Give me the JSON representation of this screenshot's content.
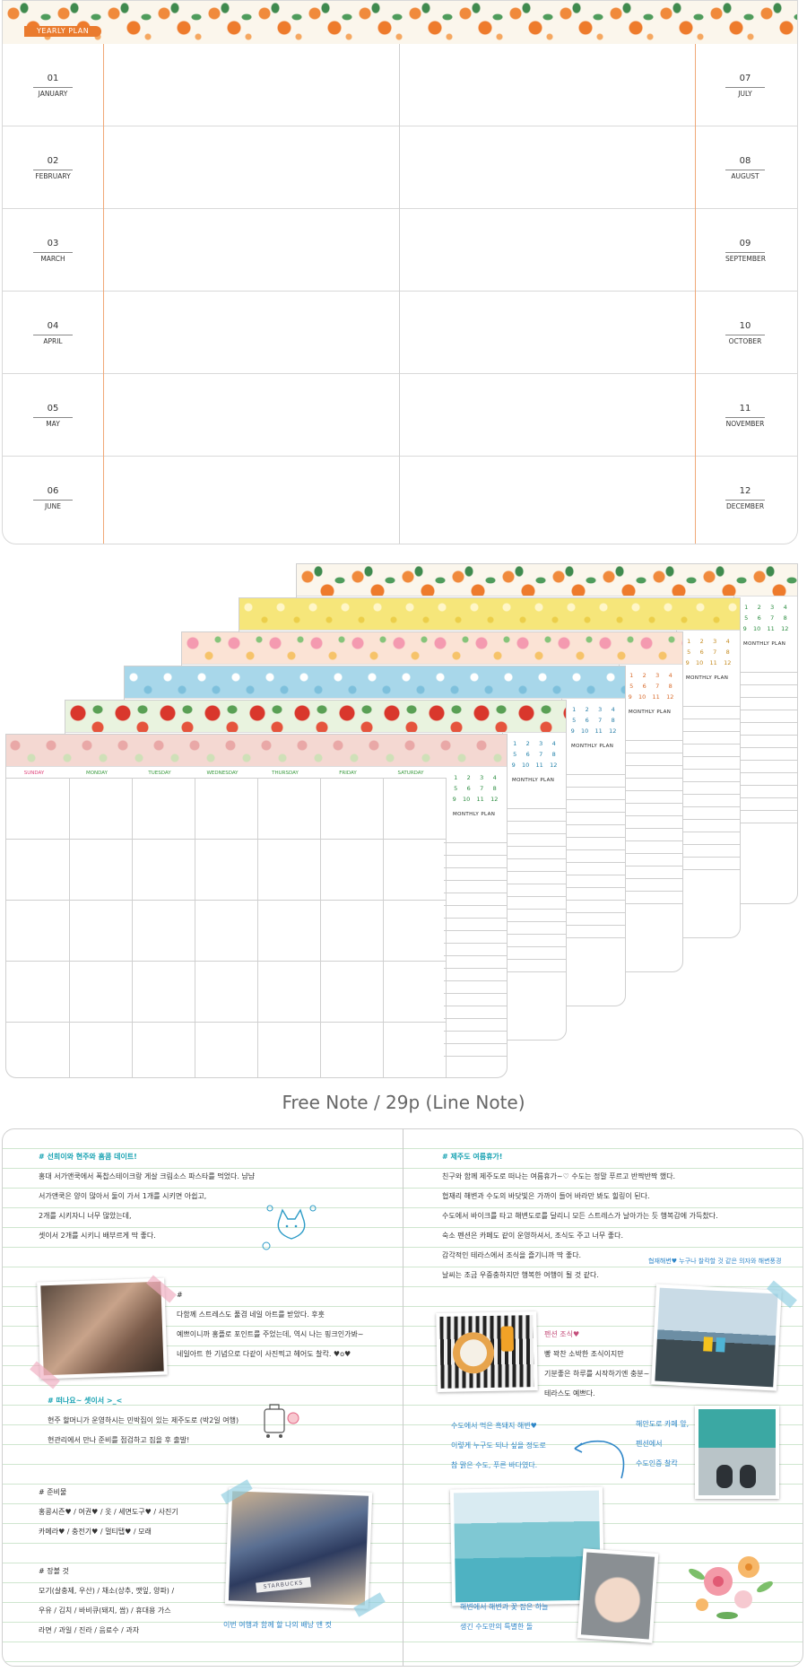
{
  "yearly_plan": {
    "label": "YEARLY PLAN",
    "months_left": [
      {
        "num": "01",
        "name": "JANUARY"
      },
      {
        "num": "02",
        "name": "FEBRUARY"
      },
      {
        "num": "03",
        "name": "MARCH"
      },
      {
        "num": "04",
        "name": "APRIL"
      },
      {
        "num": "05",
        "name": "MAY"
      },
      {
        "num": "06",
        "name": "JUNE"
      }
    ],
    "months_right": [
      {
        "num": "07",
        "name": "JULY"
      },
      {
        "num": "08",
        "name": "AUGUST"
      },
      {
        "num": "09",
        "name": "SEPTEMBER"
      },
      {
        "num": "10",
        "name": "OCTOBER"
      },
      {
        "num": "11",
        "name": "NOVEMBER"
      },
      {
        "num": "12",
        "name": "DECEMBER"
      }
    ]
  },
  "monthly_plan": {
    "days": [
      "SUNDAY",
      "MONDAY",
      "TUESDAY",
      "WEDNESDAY",
      "THURSDAY",
      "FRIDAY",
      "SATURDAY"
    ],
    "mini_calendar": [
      [
        "1",
        "2",
        "3",
        "4"
      ],
      [
        "5",
        "6",
        "7",
        "8"
      ],
      [
        "9",
        "10",
        "11",
        "12"
      ]
    ],
    "label": "MONTHLY PLAN",
    "colors": {
      "sunday": "#e0457b",
      "weekday": "#3a9a3e",
      "accent": "#ea7b2e"
    }
  },
  "free_note": {
    "caption": "Free Note / 29p (Line Note)",
    "left_page": {
      "heading1": "# 선희이와 현주와 홈콤 데이트!",
      "lines1": [
        "홍대 서가앤쿡에서 폭찹스테이크랑 게살 크림소스 파스타를 먹었다. 냠냠",
        "서가앤쿡은 양이 많아서 둘이 가서 1개를 시키면 아쉽고,",
        "2개를 시키자니 너무 많았는데,",
        "셋이서 2개를 시키니 배부르게 딱 좋다."
      ],
      "note_mark": "#",
      "lines2": [
        "다함께 스트레스도 풀겸 네일 아트를 받았다. 후훗",
        "예쁘이니까 홍플로 포인트를 주었는데, 역시 나는 핑크인가봐~",
        "네일아트 한 기념으로 다같이 사진찍고 헤어도 찰칵. ♥o♥"
      ],
      "heading2": "# 떠나요~ 셋이서 >_<",
      "lines3": [
        "현주 할머니가 운영하시는 민박집이 있는 제주도로 (박2일 여행)",
        "현관리에서 만나 준비를 점검하고 짐을 후 출발!"
      ],
      "heading3": "# 준비물",
      "lines4": [
        "홍콩시즌♥ / 여권♥ / 옷 / 세면도구♥ / 사진기",
        "카메라♥ / 충전기♥ / 멀티탭♥ / 모래"
      ],
      "heading4": "# 장볼 것",
      "lines5": [
        "모기(살충제, 우산) / 채소(상추, 깻잎, 양파) /",
        "우유 / 김치 / 바비큐(돼지, 쌈) / 휴대용 가스",
        "라면 / 과일 / 진라 / 음료수 / 과자"
      ],
      "photo_caption": "STARBUCKS",
      "bottom_note": "이번 여행과 함께 할 나의 배낭 앤 컷"
    },
    "right_page": {
      "heading1": "# 제주도 여름휴가!",
      "lines1": [
        "친구와 함께 제주도로 떠나는 여름휴가~♡ 수도는 정말 푸르고 반짝반짝 했다.",
        "협재리 해변과 수도의 바닷빛은 가까이 들어 바라만 봐도 힐링이 된다.",
        "수도에서 바이크를 타고 해변도로를 달리니 모든 스트레스가 날아가는 듯 행복감에 가득찼다.",
        "숙소 펜션은 카페도 같이 운영하셔서, 조식도 주고 너무 좋다.",
        "감각적인 테라스에서 조식을 즐기니까 딱 좋다.",
        "날씨는 조금 우중충하지만 행복한 여행이 될 것 같다."
      ],
      "photo_note": "협재해변♥ 누구나 찰칵할 것 같은 의자와 해변풍경",
      "breakfast_title": "펜션 조식♥",
      "breakfast_lines": [
        "빵 꽉찬 소박한 조식이지만",
        "기분좋은 하루를 시작하기엔 충분~",
        "테라스도 예쁘다."
      ],
      "lines2": [
        "수도에서 먹은 흑돼지 해변♥",
        "이렇게 누구도 되나 싶을 정도로",
        "참 맑은 수도, 푸른 바다였다."
      ],
      "side_note": [
        "해안도로 카페 앞,",
        "펜션에서",
        "수도인증 찰칵"
      ],
      "bottom_lines": [
        "해변에서 해변과 꽃 잡은 하늘",
        "생긴 수도만의 특별한 돌"
      ]
    }
  }
}
